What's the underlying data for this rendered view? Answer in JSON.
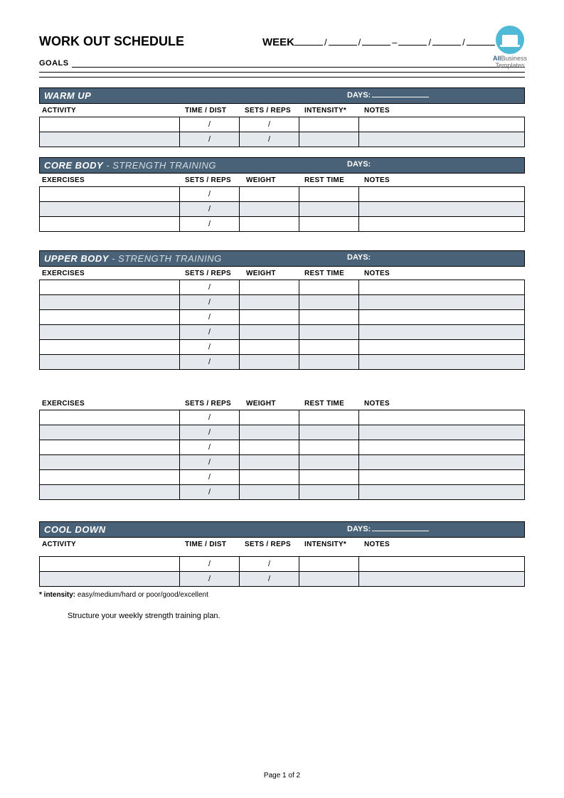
{
  "logo": {
    "line1_a": "All",
    "line1_b": "Business",
    "line2": "Templates"
  },
  "header": {
    "title": "WORK OUT SCHEDULE",
    "week_label": "WEEK",
    "goals_label": "GOALS"
  },
  "colors": {
    "section_bar_bg": "#4a6277",
    "section_bar_text": "#ffffff",
    "section_sub_text": "#d5dde4",
    "row_shade": "#e5e8ed",
    "border": "#000000",
    "logo_bg": "#4fb9d6"
  },
  "sections": {
    "warmup": {
      "title": "WARM UP",
      "subtitle": "",
      "days_label": "DAYS:",
      "days_underline": true,
      "columns": [
        "ACTIVITY",
        "TIME / DIST",
        "SETS / REPS",
        "INTENSITY*",
        "NOTES"
      ],
      "rows": 2,
      "slash_cols": [
        1,
        2
      ]
    },
    "core": {
      "title": "CORE BODY",
      "subtitle": " - STRENGTH   TRAINING",
      "days_label": "DAYS:",
      "days_underline": false,
      "columns": [
        "EXERCISES",
        "SETS / REPS",
        "WEIGHT",
        "REST TIME",
        "NOTES"
      ],
      "rows": 3,
      "slash_cols": [
        1
      ]
    },
    "upper": {
      "title": "UPPER BODY",
      "subtitle": " - STRENGTH   TRAINING",
      "days_label": "DAYS:",
      "days_underline": false,
      "columns": [
        "EXERCISES",
        "SETS / REPS",
        "WEIGHT",
        "REST TIME",
        "NOTES"
      ],
      "rows": 6,
      "slash_cols": [
        1
      ]
    },
    "orphan": {
      "columns": [
        "EXERCISES",
        "SETS / REPS",
        "WEIGHT",
        "REST TIME",
        "NOTES"
      ],
      "rows": 6,
      "slash_cols": [
        1
      ]
    },
    "cooldown": {
      "title": "COOL DOWN",
      "subtitle": "",
      "days_label": "DAYS:",
      "days_underline": true,
      "columns": [
        "ACTIVITY",
        "TIME / DIST",
        "SETS / REPS",
        "INTENSITY*",
        "NOTES"
      ],
      "rows": 2,
      "slash_cols": [
        1,
        2
      ]
    }
  },
  "footnote_label": "* intensity:",
  "footnote_text": " easy/medium/hard or  poor/good/excellent",
  "tagline": "Structure your weekly strength training plan.",
  "page_footer": "Page 1 of 2",
  "slash_char": "/"
}
